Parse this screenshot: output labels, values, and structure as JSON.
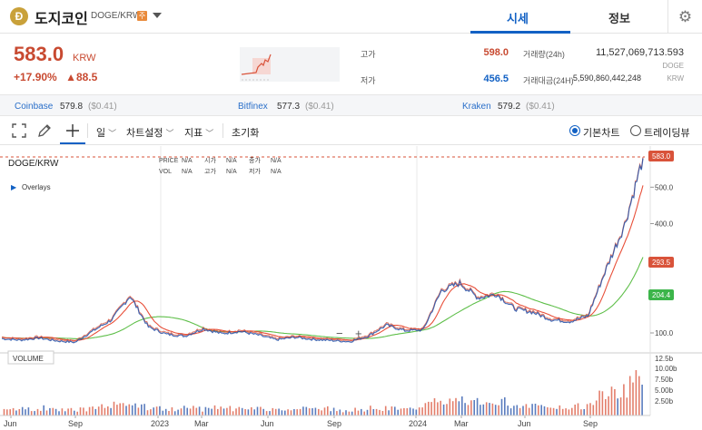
{
  "header": {
    "logo_glyph": "Ð",
    "coin_name": "도지코인",
    "pair": "DOGE/KRW",
    "warning_badge": "주",
    "tabs": [
      "시세",
      "정보"
    ]
  },
  "price_panel": {
    "price": "583.0",
    "unit": "KRW",
    "change_pct": "+17.90%",
    "change_abs": "▲88.5",
    "high_label": "고가",
    "high_value": "598.0",
    "low_label": "저가",
    "low_value": "456.5",
    "volume_label": "거래량(24h)",
    "volume_value": "11,527,069,713.593",
    "volume_unit": "DOGE",
    "amount_label": "거래대금(24H)",
    "amount_value": "5,590,860,442,248",
    "amount_unit": "KRW"
  },
  "exchanges": [
    {
      "name": "Coinbase",
      "price": "579.8",
      "diff": "($0.41)"
    },
    {
      "name": "Bitfinex",
      "price": "577.3",
      "diff": "($0.41)"
    },
    {
      "name": "Kraken",
      "price": "579.2",
      "diff": "($0.41)"
    }
  ],
  "toolbar": {
    "period": "일",
    "chart_settings": "차트설정",
    "indicators": "지표",
    "reset": "초기화",
    "basic_chart": "기본차트",
    "tradingview": "트레이딩뷰"
  },
  "chart_data": {
    "type": "line",
    "symbol": "DOGE/KRW",
    "legend_labels": {
      "price": "PRICE",
      "vol": "VOL",
      "open": "시가",
      "high": "고가",
      "close": "종가",
      "low": "저가",
      "na": "N/A"
    },
    "overlays_label": "Overlays",
    "volume_label": "VOLUME",
    "x_ticks": [
      "Jun",
      "Sep",
      "2023",
      "Mar",
      "Jun",
      "Sep",
      "2024",
      "Mar",
      "Jun",
      "Sep"
    ],
    "y_ticks": [
      "100.0",
      "300.0",
      "400.0",
      "500.0"
    ],
    "vol_ticks": [
      "12.5b",
      "10.00b",
      "7.50b",
      "5.00b",
      "2.50b"
    ],
    "price_tags": {
      "last": "583.0",
      "ma_short": "293.5",
      "ma_long": "204.4"
    },
    "zoom_controls": {
      "minus": "−",
      "plus": "+"
    },
    "series": [
      {
        "name": "price",
        "points": [
          [
            "Jun",
            88
          ],
          [
            "Jul",
            84
          ],
          [
            "Aug",
            90
          ],
          [
            "Sep",
            82
          ],
          [
            "Oct",
            78
          ],
          [
            "Oct",
            110
          ],
          [
            "Nov",
            140
          ],
          [
            "Nov",
            205
          ],
          [
            "Dec",
            120
          ],
          [
            "Dec",
            100
          ],
          [
            "2023",
            95
          ],
          [
            "Feb",
            115
          ],
          [
            "Mar",
            102
          ],
          [
            "Apr",
            108
          ],
          [
            "May",
            98
          ],
          [
            "Jun",
            85
          ],
          [
            "Jul",
            92
          ],
          [
            "Aug",
            86
          ],
          [
            "Sep",
            83
          ],
          [
            "Oct",
            80
          ],
          [
            "Nov",
            95
          ],
          [
            "Dec",
            125
          ],
          [
            "2024",
            110
          ],
          [
            "Feb",
            112
          ],
          [
            "Mar",
            220
          ],
          [
            "Apr",
            240
          ],
          [
            "Apr",
            200
          ],
          [
            "May",
            210
          ],
          [
            "Jun",
            170
          ],
          [
            "Jul",
            160
          ],
          [
            "Aug",
            140
          ],
          [
            "Sep",
            135
          ],
          [
            "Oct",
            150
          ],
          [
            "Nov",
            280
          ],
          [
            "Nov",
            400
          ],
          [
            "Dec",
            583
          ]
        ]
      }
    ]
  }
}
